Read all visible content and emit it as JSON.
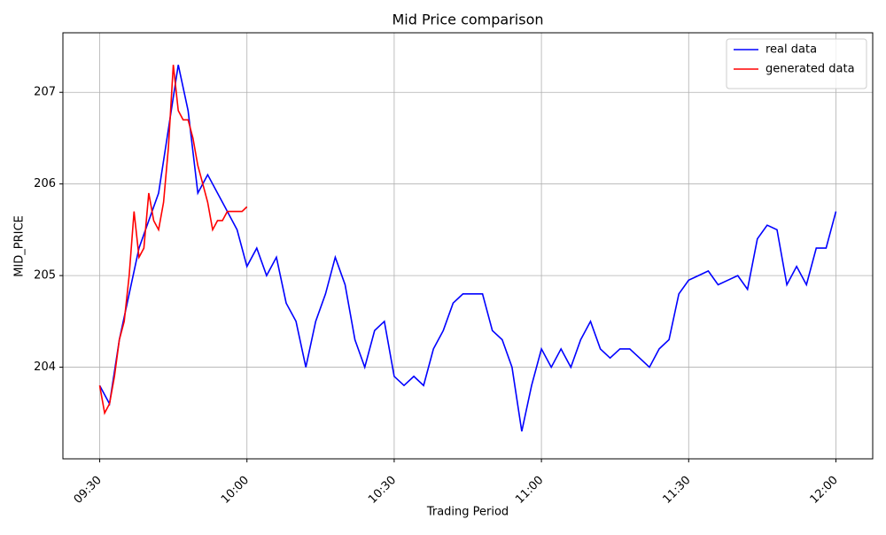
{
  "chart_data": {
    "type": "line",
    "title": "Mid Price comparison",
    "xlabel": "Trading Period",
    "ylabel": "MID_PRICE",
    "grid": true,
    "legend": "upper right",
    "ylim": [
      203.0,
      207.65
    ],
    "yticks": [
      204,
      205,
      206,
      207
    ],
    "xticks": [
      "09:30",
      "10:00",
      "10:30",
      "11:00",
      "11:30",
      "12:00"
    ],
    "series": [
      {
        "name": "real data",
        "color": "#0000ff",
        "x": [
          "09:30",
          "09:32",
          "09:34",
          "09:36",
          "09:38",
          "09:40",
          "09:42",
          "09:44",
          "09:46",
          "09:48",
          "09:50",
          "09:52",
          "09:54",
          "09:56",
          "09:58",
          "10:00",
          "10:02",
          "10:04",
          "10:06",
          "10:08",
          "10:10",
          "10:12",
          "10:14",
          "10:16",
          "10:18",
          "10:20",
          "10:22",
          "10:24",
          "10:26",
          "10:28",
          "10:30",
          "10:32",
          "10:34",
          "10:36",
          "10:38",
          "10:40",
          "10:42",
          "10:44",
          "10:46",
          "10:48",
          "10:50",
          "10:52",
          "10:54",
          "10:56",
          "10:58",
          "11:00",
          "11:02",
          "11:04",
          "11:06",
          "11:08",
          "11:10",
          "11:12",
          "11:14",
          "11:16",
          "11:18",
          "11:20",
          "11:22",
          "11:24",
          "11:26",
          "11:28",
          "11:30",
          "11:32",
          "11:34",
          "11:36",
          "11:38",
          "11:40",
          "11:42",
          "11:44",
          "11:46",
          "11:48",
          "11:50",
          "11:52",
          "11:54",
          "11:56",
          "11:58",
          "12:00"
        ],
        "values": [
          203.8,
          203.6,
          204.3,
          204.8,
          205.3,
          205.6,
          205.9,
          206.6,
          207.3,
          206.8,
          205.9,
          206.1,
          205.9,
          205.7,
          205.5,
          205.1,
          205.3,
          205.0,
          205.2,
          204.7,
          204.5,
          204.0,
          204.5,
          204.8,
          205.2,
          204.9,
          204.3,
          204.0,
          204.4,
          204.5,
          203.9,
          203.8,
          203.9,
          203.8,
          204.2,
          204.4,
          204.7,
          204.8,
          204.8,
          204.8,
          204.4,
          204.3,
          204.0,
          203.3,
          203.8,
          204.2,
          204.0,
          204.2,
          204.0,
          204.3,
          204.5,
          204.2,
          204.1,
          204.2,
          204.2,
          204.1,
          204.0,
          204.2,
          204.3,
          204.8,
          204.95,
          205.0,
          205.05,
          204.9,
          204.95,
          205.0,
          204.85,
          205.4,
          205.55,
          205.5,
          204.9,
          205.1,
          204.9,
          205.3,
          205.3,
          205.7
        ]
      },
      {
        "name": "generated data",
        "color": "#ff0000",
        "x": [
          "09:30",
          "09:31",
          "09:32",
          "09:33",
          "09:34",
          "09:35",
          "09:36",
          "09:37",
          "09:38",
          "09:39",
          "09:40",
          "09:41",
          "09:42",
          "09:43",
          "09:44",
          "09:45",
          "09:46",
          "09:47",
          "09:48",
          "09:49",
          "09:50",
          "09:51",
          "09:52",
          "09:53",
          "09:54",
          "09:55",
          "09:56",
          "09:57",
          "09:58",
          "09:59",
          "10:00"
        ],
        "values": [
          203.8,
          203.5,
          203.6,
          203.9,
          204.3,
          204.5,
          205.0,
          205.7,
          205.2,
          205.3,
          205.9,
          205.6,
          205.5,
          205.8,
          206.4,
          207.3,
          206.8,
          206.7,
          206.7,
          206.5,
          206.2,
          206.0,
          205.8,
          205.5,
          205.6,
          205.6,
          205.7,
          205.7,
          205.7,
          205.7,
          205.75
        ]
      }
    ]
  }
}
